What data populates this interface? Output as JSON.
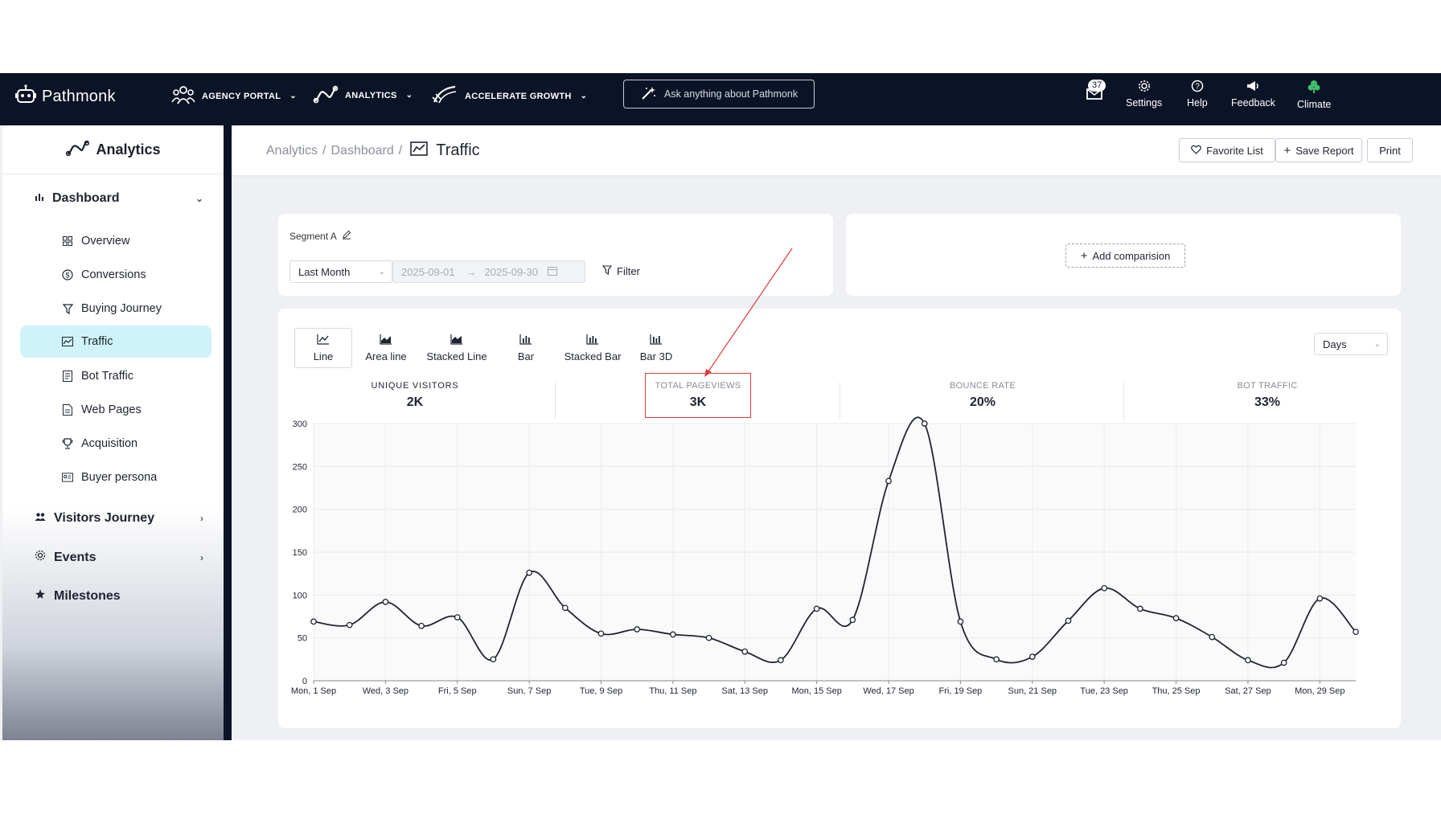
{
  "topnav": {
    "brand": "Pathmonk",
    "items": [
      {
        "label": "AGENCY PORTAL",
        "icon": "agency-icon"
      },
      {
        "label": "ANALYTICS",
        "icon": "analytics-icon"
      },
      {
        "label": "ACCELERATE GROWTH",
        "icon": "rocket-icon"
      }
    ],
    "ask_placeholder": "Ask anything about Pathmonk",
    "mail_badge": "37",
    "tools": [
      "Settings",
      "Help",
      "Feedback",
      "Climate"
    ]
  },
  "sidebar": {
    "title": "Analytics",
    "dashboard_label": "Dashboard",
    "items": [
      {
        "label": "Overview",
        "icon": "grid-icon"
      },
      {
        "label": "Conversions",
        "icon": "dollar-circle-icon"
      },
      {
        "label": "Buying Journey",
        "icon": "funnel-icon"
      },
      {
        "label": "Traffic",
        "icon": "trend-chart-icon",
        "active": true
      },
      {
        "label": "Bot Traffic",
        "icon": "bot-icon"
      },
      {
        "label": "Web Pages",
        "icon": "page-icon"
      },
      {
        "label": "Acquisition",
        "icon": "trophy-icon"
      },
      {
        "label": "Buyer persona",
        "icon": "id-card-icon"
      }
    ],
    "groups": [
      "Visitors Journey",
      "Events",
      "Milestones"
    ]
  },
  "breadcrumb": {
    "part1": "Analytics",
    "part2": "Dashboard",
    "current": "Traffic"
  },
  "header_buttons": {
    "favorite": "Favorite List",
    "save": "Save Report",
    "print": "Print"
  },
  "segment": {
    "label": "Segment A",
    "period": "Last Month",
    "start_date": "2025-09-01",
    "end_date": "2025-09-30",
    "filter_label": "Filter"
  },
  "comparison": {
    "add_label": "Add comparision"
  },
  "chart_tabs": [
    "Line",
    "Area line",
    "Stacked Line",
    "Bar",
    "Stacked Bar",
    "Bar 3D"
  ],
  "granularity": "Days",
  "metrics": [
    {
      "label": "UNIQUE VISITORS",
      "value": "2K"
    },
    {
      "label": "TOTAL PAGEVIEWS",
      "value": "3K"
    },
    {
      "label": "BOUNCE RATE",
      "value": "20%"
    },
    {
      "label": "BOT TRAFFIC",
      "value": "33%"
    }
  ],
  "colors": {
    "nav_bg": "#0b1326",
    "active_item": "#cff3f8",
    "highlight": "#e03a3a",
    "climate_icon": "#3fbf6a"
  },
  "chart_data": {
    "type": "line",
    "x": [
      "Mon, 1 Sep",
      "Tue, 2 Sep",
      "Wed, 3 Sep",
      "Thu, 4 Sep",
      "Fri, 5 Sep",
      "Sat, 6 Sep",
      "Sun, 7 Sep",
      "Mon, 8 Sep",
      "Tue, 9 Sep",
      "Wed, 10 Sep",
      "Thu, 11 Sep",
      "Fri, 12 Sep",
      "Sat, 13 Sep",
      "Sun, 14 Sep",
      "Mon, 15 Sep",
      "Tue, 16 Sep",
      "Wed, 17 Sep",
      "Thu, 18 Sep",
      "Fri, 19 Sep",
      "Sat, 20 Sep",
      "Sun, 21 Sep",
      "Mon, 22 Sep",
      "Tue, 23 Sep",
      "Wed, 24 Sep",
      "Thu, 25 Sep",
      "Fri, 26 Sep",
      "Sat, 27 Sep",
      "Sun, 28 Sep",
      "Mon, 29 Sep",
      "Tue, 30 Sep"
    ],
    "x_tick_labels": [
      "Mon, 1 Sep",
      "Wed, 3 Sep",
      "Fri, 5 Sep",
      "Sun, 7 Sep",
      "Tue, 9 Sep",
      "Thu, 11 Sep",
      "Sat, 13 Sep",
      "Mon, 15 Sep",
      "Wed, 17 Sep",
      "Fri, 19 Sep",
      "Sun, 21 Sep",
      "Tue, 23 Sep",
      "Thu, 25 Sep",
      "Sat, 27 Sep",
      "Mon, 29 Sep"
    ],
    "values": [
      69,
      65,
      92,
      64,
      74,
      25,
      126,
      85,
      55,
      60,
      54,
      50,
      34,
      24,
      84,
      71,
      233,
      300,
      69,
      25,
      28,
      70,
      108,
      84,
      73,
      51,
      24,
      21,
      96,
      57
    ],
    "ylim": [
      0,
      300
    ],
    "y_ticks": [
      0,
      50,
      100,
      150,
      200,
      250,
      300
    ],
    "grid": true
  }
}
